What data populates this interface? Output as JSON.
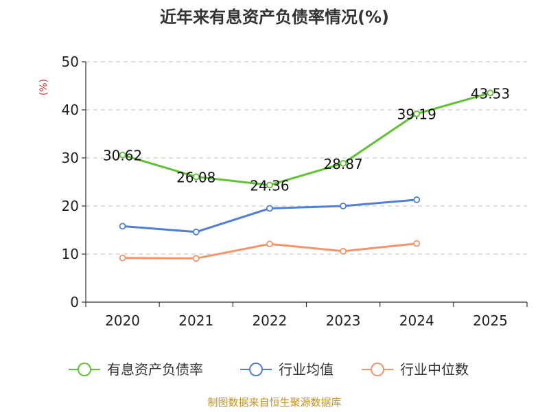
{
  "chart_data": {
    "type": "line",
    "title": "近年来有息资产负债率情况(%)",
    "y_unit": "(%)",
    "categories": [
      "2020",
      "2021",
      "2022",
      "2023",
      "2024",
      "2025"
    ],
    "ylim": [
      0,
      50
    ],
    "yticks": [
      0,
      10,
      20,
      30,
      40,
      50
    ],
    "grid": true,
    "legend_position": "bottom",
    "series": [
      {
        "name": "有息资产负债率",
        "color": "#5cc42c",
        "values": [
          30.62,
          26.08,
          24.36,
          28.87,
          39.19,
          43.53
        ],
        "labels": [
          "30.62",
          "26.08",
          "24.36",
          "28.87",
          "39.19",
          "43.53"
        ]
      },
      {
        "name": "行业均值",
        "color": "#4f7ed6",
        "values": [
          15.8,
          14.6,
          19.5,
          20.0,
          21.3,
          null
        ]
      },
      {
        "name": "行业中位数",
        "color": "#f59469",
        "values": [
          9.2,
          9.1,
          12.1,
          10.6,
          12.2,
          null
        ]
      }
    ],
    "source": "制图数据来自恒生聚源数据库"
  }
}
